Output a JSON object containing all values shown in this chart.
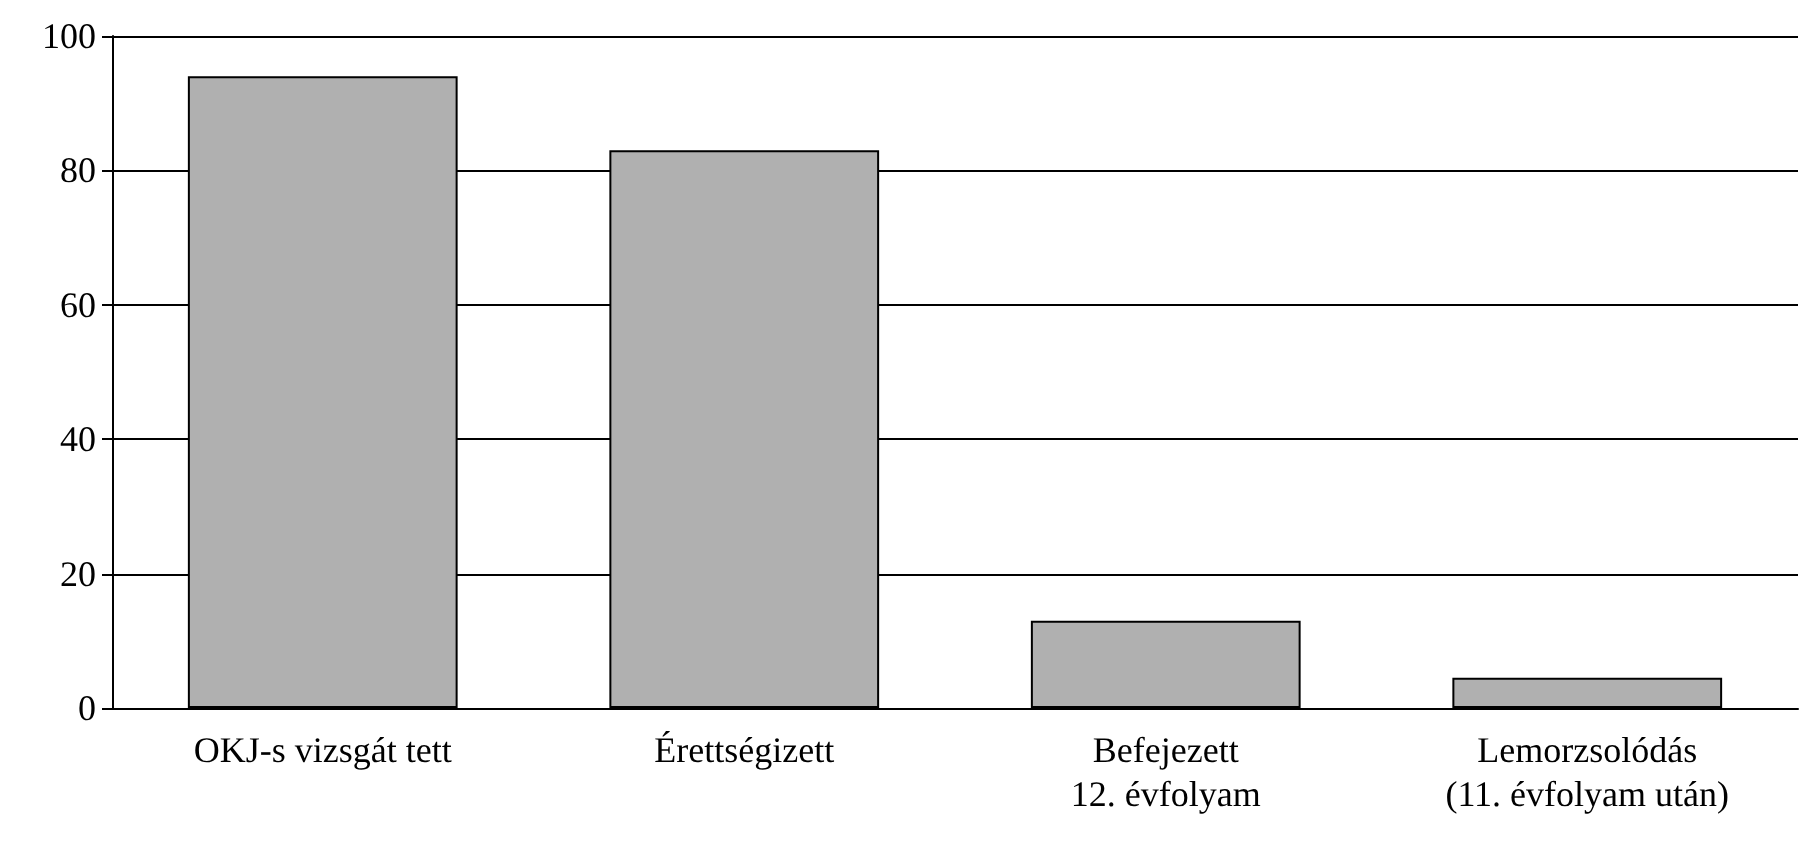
{
  "chart_data": {
    "type": "bar",
    "categories": [
      "OKJ-s vizsgát tett",
      "Érettségizett",
      "Befejezett\n12. évfolyam",
      "Lemorzsolódás\n(11. évfolyam után)"
    ],
    "values": [
      94,
      83,
      13,
      4.5
    ],
    "color": "#b0b0b0",
    "ylim": [
      0,
      100
    ],
    "yticks": [
      0,
      20,
      40,
      60,
      80,
      100
    ],
    "grid": "y"
  }
}
